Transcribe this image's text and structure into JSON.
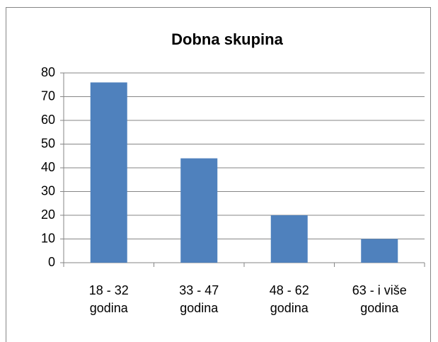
{
  "chart_data": {
    "type": "bar",
    "title": "Dobna skupina",
    "categories": [
      "18 - 32 godina",
      "33 - 47 godina",
      "48 - 62 godina",
      "63 - i više godina"
    ],
    "values": [
      76,
      44,
      20,
      10
    ],
    "color": "#4f81bd",
    "ylim": [
      0,
      80
    ],
    "yticks": [
      0,
      10,
      20,
      30,
      40,
      50,
      60,
      70,
      80
    ],
    "grid": true
  }
}
